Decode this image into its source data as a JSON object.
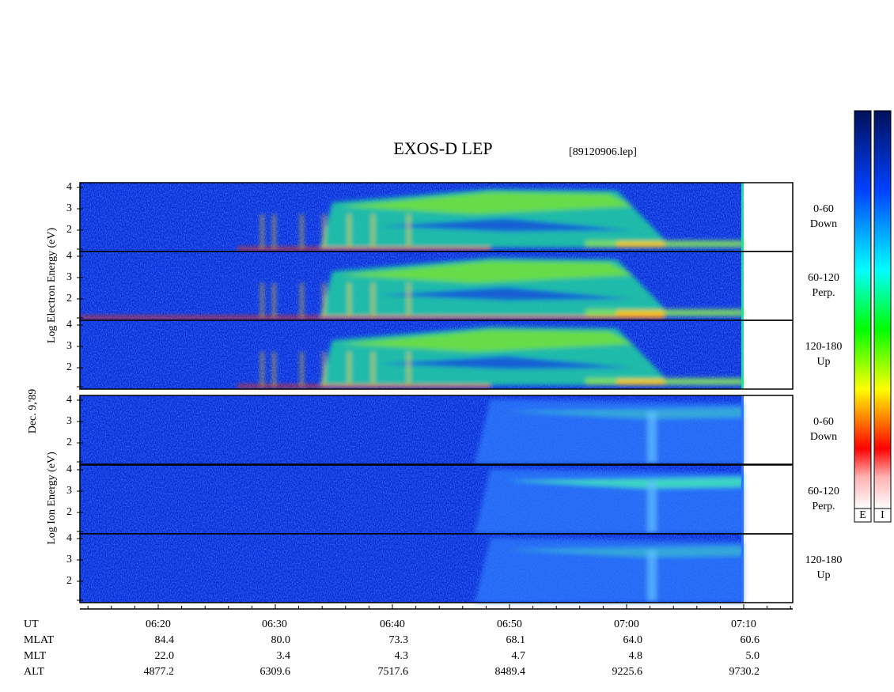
{
  "header": {
    "title": "EXOS-D LEP",
    "file": "[89120906.lep]"
  },
  "side_labels": {
    "electron": "Log Electron Energy (eV)",
    "date": "Dec. 9,'89",
    "ion": "Log Ion Energy (eV)"
  },
  "panels": [
    {
      "group": "electron",
      "label1": "0-60",
      "label2": "Down",
      "yticks": [
        "4",
        "3",
        "2"
      ]
    },
    {
      "group": "electron",
      "label1": "60-120",
      "label2": "Perp.",
      "yticks": [
        "4",
        "3",
        "2"
      ]
    },
    {
      "group": "electron",
      "label1": "120-180",
      "label2": "Up",
      "yticks": [
        "4",
        "3",
        "2"
      ]
    },
    {
      "group": "ion",
      "label1": "0-60",
      "label2": "Down",
      "yticks": [
        "4",
        "3",
        "2"
      ]
    },
    {
      "group": "ion",
      "label1": "60-120",
      "label2": "Perp.",
      "yticks": [
        "4",
        "3",
        "2"
      ]
    },
    {
      "group": "ion",
      "label1": "120-180",
      "label2": "Up",
      "yticks": [
        "4",
        "3",
        "2"
      ]
    }
  ],
  "colorbars": [
    "E",
    "I"
  ],
  "table": {
    "rows": [
      [
        "UT",
        "06:20",
        "06:30",
        "06:40",
        "06:50",
        "07:00",
        "07:10"
      ],
      [
        "MLAT",
        "84.4",
        "80.0",
        "73.3",
        "68.1",
        "64.0",
        "60.6"
      ],
      [
        "MLT",
        "22.0",
        "3.4",
        "4.3",
        "4.7",
        "4.8",
        "5.0"
      ],
      [
        "ALT",
        "4877.2",
        "6309.6",
        "7517.6",
        "8489.4",
        "9225.6",
        "9730.2"
      ]
    ]
  }
}
